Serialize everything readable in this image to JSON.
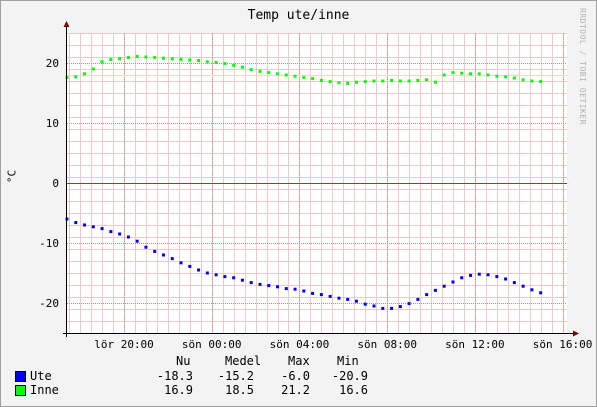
{
  "chart_data": {
    "type": "scatter",
    "title": "Temp ute/inne",
    "ylabel": "°C",
    "watermark": "RRDTOOL / TOBI OETIKER",
    "ylim": [
      -25,
      25
    ],
    "xlim": [
      17.4,
      40.2
    ],
    "y_ticks": [
      {
        "value": 20,
        "label": "20"
      },
      {
        "value": 10,
        "label": "10"
      },
      {
        "value": 0,
        "label": "0"
      },
      {
        "value": -10,
        "label": "-10"
      },
      {
        "value": -20,
        "label": "-20"
      }
    ],
    "x_ticks": [
      {
        "value": 20,
        "label": "lör 20:00"
      },
      {
        "value": 24,
        "label": "sön 00:00"
      },
      {
        "value": 28,
        "label": "sön 04:00"
      },
      {
        "value": 32,
        "label": "sön 08:00"
      },
      {
        "value": 36,
        "label": "sön 12:00"
      },
      {
        "value": 40,
        "label": "sön 16:00"
      }
    ],
    "reference_lines": [
      {
        "value": 18,
        "color": "#ffff00"
      },
      {
        "value": 0,
        "color": "#cc00cc"
      }
    ],
    "grid": true,
    "series": [
      {
        "name": "Ute",
        "color": "#0000ff",
        "points": [
          [
            17.4,
            -6.0
          ],
          [
            17.8,
            -6.6
          ],
          [
            18.2,
            -7.0
          ],
          [
            18.6,
            -7.3
          ],
          [
            19.0,
            -7.6
          ],
          [
            19.4,
            -8.1
          ],
          [
            19.8,
            -8.5
          ],
          [
            20.2,
            -9.0
          ],
          [
            20.6,
            -9.7
          ],
          [
            21.0,
            -10.7
          ],
          [
            21.4,
            -11.4
          ],
          [
            21.8,
            -12.0
          ],
          [
            22.2,
            -12.6
          ],
          [
            22.6,
            -13.3
          ],
          [
            23.0,
            -13.9
          ],
          [
            23.4,
            -14.5
          ],
          [
            23.8,
            -15.0
          ],
          [
            24.2,
            -15.3
          ],
          [
            24.6,
            -15.6
          ],
          [
            25.0,
            -15.8
          ],
          [
            25.4,
            -16.2
          ],
          [
            25.8,
            -16.6
          ],
          [
            26.2,
            -16.9
          ],
          [
            26.6,
            -17.1
          ],
          [
            27.0,
            -17.3
          ],
          [
            27.4,
            -17.6
          ],
          [
            27.8,
            -17.7
          ],
          [
            28.2,
            -18.0
          ],
          [
            28.6,
            -18.4
          ],
          [
            29.0,
            -18.6
          ],
          [
            29.4,
            -18.9
          ],
          [
            29.8,
            -19.2
          ],
          [
            30.2,
            -19.4
          ],
          [
            30.6,
            -19.7
          ],
          [
            31.0,
            -20.2
          ],
          [
            31.4,
            -20.5
          ],
          [
            31.8,
            -20.9
          ],
          [
            32.2,
            -20.9
          ],
          [
            32.6,
            -20.6
          ],
          [
            33.0,
            -20.1
          ],
          [
            33.4,
            -19.4
          ],
          [
            33.8,
            -18.6
          ],
          [
            34.2,
            -17.9
          ],
          [
            34.6,
            -17.2
          ],
          [
            35.0,
            -16.5
          ],
          [
            35.4,
            -15.8
          ],
          [
            35.8,
            -15.4
          ],
          [
            36.2,
            -15.2
          ],
          [
            36.6,
            -15.3
          ],
          [
            37.0,
            -15.6
          ],
          [
            37.4,
            -16.0
          ],
          [
            37.8,
            -16.6
          ],
          [
            38.2,
            -17.2
          ],
          [
            38.6,
            -17.8
          ],
          [
            39.0,
            -18.3
          ]
        ]
      },
      {
        "name": "Inne",
        "color": "#00ff00",
        "points": [
          [
            17.4,
            17.6
          ],
          [
            17.8,
            17.7
          ],
          [
            18.2,
            18.2
          ],
          [
            18.6,
            19.0
          ],
          [
            19.0,
            20.2
          ],
          [
            19.4,
            20.6
          ],
          [
            19.8,
            20.7
          ],
          [
            20.2,
            20.9
          ],
          [
            20.6,
            21.1
          ],
          [
            21.0,
            21.0
          ],
          [
            21.4,
            20.9
          ],
          [
            21.8,
            20.8
          ],
          [
            22.2,
            20.7
          ],
          [
            22.6,
            20.6
          ],
          [
            23.0,
            20.5
          ],
          [
            23.4,
            20.4
          ],
          [
            23.8,
            20.2
          ],
          [
            24.2,
            20.1
          ],
          [
            24.6,
            19.9
          ],
          [
            25.0,
            19.6
          ],
          [
            25.4,
            19.3
          ],
          [
            25.8,
            18.9
          ],
          [
            26.2,
            18.6
          ],
          [
            26.6,
            18.4
          ],
          [
            27.0,
            18.2
          ],
          [
            27.4,
            18.0
          ],
          [
            27.8,
            17.8
          ],
          [
            28.2,
            17.6
          ],
          [
            28.6,
            17.4
          ],
          [
            29.0,
            17.1
          ],
          [
            29.4,
            16.9
          ],
          [
            29.8,
            16.7
          ],
          [
            30.2,
            16.6
          ],
          [
            30.6,
            16.8
          ],
          [
            31.0,
            16.9
          ],
          [
            31.4,
            17.0
          ],
          [
            31.8,
            17.0
          ],
          [
            32.2,
            17.1
          ],
          [
            32.6,
            17.0
          ],
          [
            33.0,
            17.0
          ],
          [
            33.4,
            17.1
          ],
          [
            33.8,
            17.2
          ],
          [
            34.2,
            16.8
          ],
          [
            34.6,
            18.0
          ],
          [
            35.0,
            18.4
          ],
          [
            35.4,
            18.3
          ],
          [
            35.8,
            18.2
          ],
          [
            36.2,
            18.2
          ],
          [
            36.6,
            18.0
          ],
          [
            37.0,
            17.8
          ],
          [
            37.4,
            17.7
          ],
          [
            37.8,
            17.5
          ],
          [
            38.2,
            17.2
          ],
          [
            38.6,
            17.0
          ],
          [
            39.0,
            16.9
          ]
        ]
      }
    ]
  },
  "legend": {
    "headers": [
      "Nu",
      "Medel",
      "Max",
      "Min"
    ],
    "rows": [
      {
        "name": "Ute",
        "color": "#0000ff",
        "values": [
          "-18.3",
          "-15.2",
          "-6.0",
          "-20.9"
        ]
      },
      {
        "name": "Inne",
        "color": "#00ff00",
        "values": [
          "16.9",
          "18.5",
          "21.2",
          "16.6"
        ]
      }
    ]
  }
}
